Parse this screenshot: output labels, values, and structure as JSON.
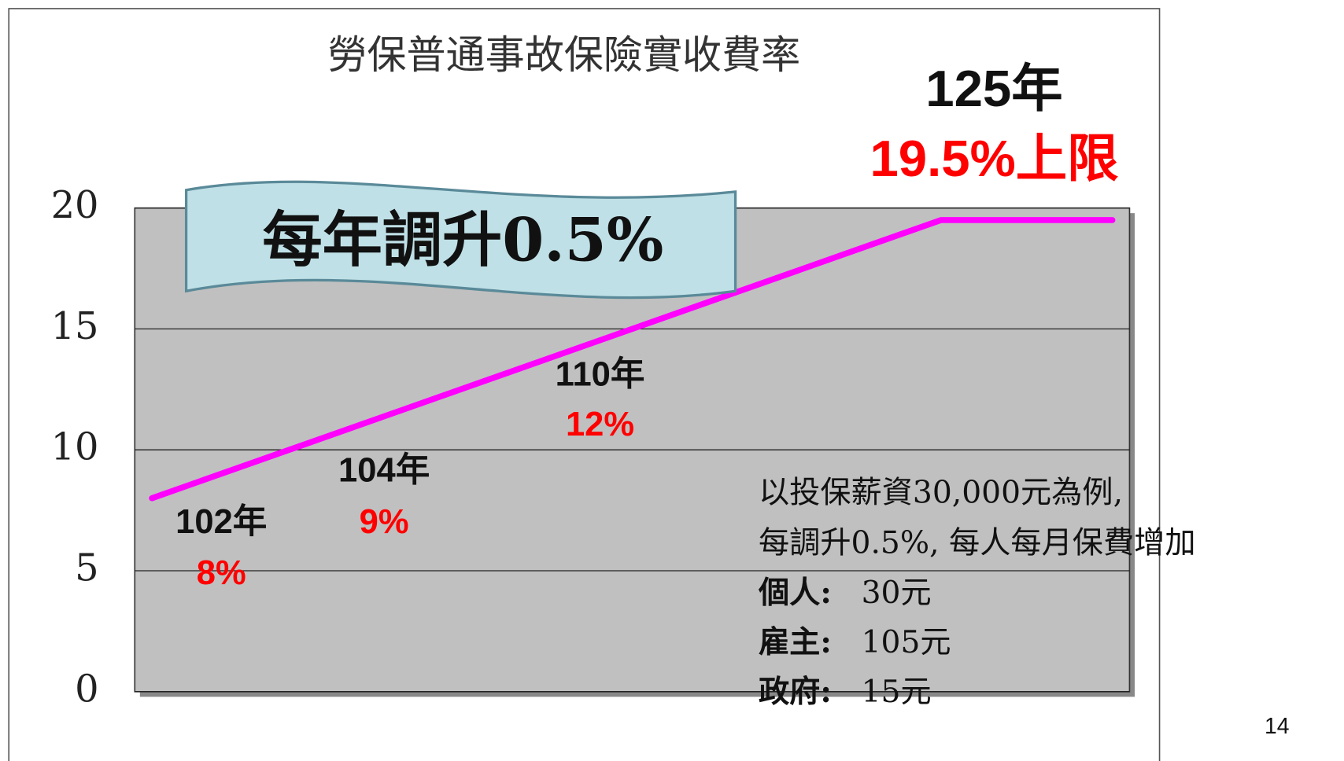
{
  "chart_data": {
    "type": "line",
    "title": "勞保普通事故保險實收費率",
    "x": [
      102,
      125,
      130
    ],
    "values": [
      8,
      19.5,
      19.5
    ],
    "color": "#ff00ff",
    "xlim": [
      101.5,
      130.5
    ],
    "ylim": [
      0,
      20
    ],
    "yticks": [
      0,
      5,
      10,
      15,
      20
    ],
    "grid": true,
    "banner": "每年調升0.5%",
    "annotations": [
      {
        "label": "102年",
        "value_label": "8%"
      },
      {
        "label": "104年",
        "value_label": "9%"
      },
      {
        "label": "110年",
        "value_label": "12%"
      },
      {
        "label": "125年",
        "value_label": "19.5%上限"
      }
    ],
    "note": [
      "以投保薪資30,000元為例,",
      "每調升0.5%, 每人每月保費增加"
    ],
    "breakdown": [
      {
        "label": "個人:",
        "amount": "30元"
      },
      {
        "label": "雇主:",
        "amount": "105元"
      },
      {
        "label": "政府:",
        "amount": "15元"
      }
    ]
  },
  "page_number": "14"
}
